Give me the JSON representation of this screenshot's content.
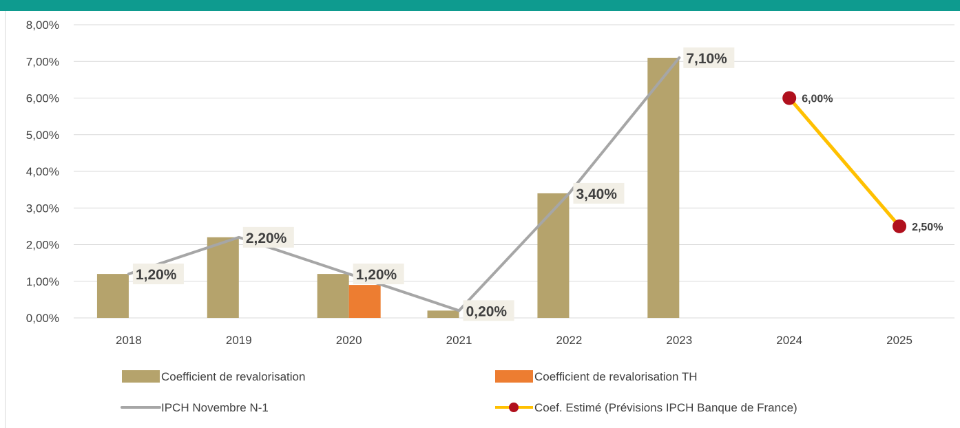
{
  "colors": {
    "band": "#0e9b8f",
    "grid": "#d9d9d9",
    "coef": "#b5a36c",
    "coef_th": "#ed7d31",
    "ipch": "#a6a6a6",
    "estime_line": "#ffc000",
    "estime_marker": "#b0101d",
    "label_bg": "#f2efe6"
  },
  "chart_data": {
    "type": "bar",
    "categories": [
      "2018",
      "2019",
      "2020",
      "2021",
      "2022",
      "2023",
      "2024",
      "2025"
    ],
    "ylim": [
      0,
      8
    ],
    "y_ticks": [
      "0,00%",
      "1,00%",
      "2,00%",
      "3,00%",
      "4,00%",
      "5,00%",
      "6,00%",
      "7,00%",
      "8,00%"
    ],
    "grid": true,
    "legend_position": "bottom",
    "series": [
      {
        "name": "Coefficient de revalorisation",
        "kind": "bar",
        "values": [
          1.2,
          2.2,
          1.2,
          0.2,
          3.4,
          7.1,
          null,
          null
        ]
      },
      {
        "name": "Coefficient de revalorisation TH",
        "kind": "bar",
        "values": [
          null,
          null,
          0.9,
          null,
          null,
          null,
          null,
          null
        ]
      },
      {
        "name": "IPCH Novembre N-1",
        "kind": "line",
        "values": [
          1.2,
          2.2,
          1.2,
          0.2,
          3.4,
          7.1,
          null,
          null
        ],
        "labels": [
          "1,20%",
          "2,20%",
          "1,20%",
          "0,20%",
          "3,40%",
          "7,10%",
          null,
          null
        ]
      },
      {
        "name": "Coef. Estimé (Prévisions IPCH Banque de France)",
        "kind": "line-marker",
        "values": [
          null,
          null,
          null,
          null,
          null,
          null,
          6.0,
          2.5
        ],
        "labels": [
          null,
          null,
          null,
          null,
          null,
          null,
          "6,00%",
          "2,50%"
        ]
      }
    ]
  }
}
